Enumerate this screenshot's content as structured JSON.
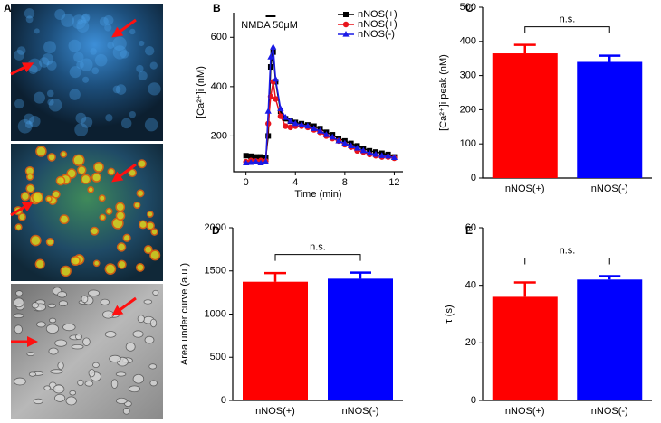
{
  "panel_a": {
    "label": "A"
  },
  "chart_data": [
    {
      "type": "line",
      "label": "B",
      "y_label": "[Ca²⁺]i (nM)",
      "x_label": "Time (min)",
      "annotation": "NMDA 50μM",
      "x": [
        0,
        0.4,
        0.8,
        1.2,
        1.6,
        1.8,
        2.0,
        2.2,
        2.4,
        2.8,
        3.2,
        3.6,
        4,
        4.5,
        5,
        5.5,
        6,
        6.5,
        7,
        7.5,
        8,
        8.5,
        9,
        9.5,
        10,
        10.5,
        11,
        11.5,
        12
      ],
      "series": [
        {
          "name": "nNOS(+)",
          "color": "#000000",
          "marker": "square",
          "values": [
            120,
            118,
            115,
            115,
            112,
            200,
            480,
            540,
            420,
            300,
            270,
            260,
            255,
            250,
            245,
            240,
            230,
            215,
            205,
            190,
            180,
            170,
            160,
            150,
            140,
            135,
            130,
            125,
            115
          ]
        },
        {
          "name": "nNOS(+)",
          "color": "#e8141c",
          "marker": "circle",
          "values": [
            95,
            100,
            98,
            100,
            98,
            250,
            360,
            420,
            350,
            280,
            240,
            235,
            240,
            240,
            235,
            225,
            215,
            200,
            190,
            180,
            165,
            155,
            140,
            135,
            125,
            120,
            115,
            115,
            110
          ]
        },
        {
          "name": "nNOS(-)",
          "color": "#1a1ae6",
          "marker": "triangle",
          "values": [
            90,
            92,
            95,
            90,
            95,
            300,
            520,
            560,
            430,
            310,
            275,
            260,
            250,
            245,
            240,
            230,
            220,
            205,
            195,
            180,
            170,
            160,
            150,
            140,
            130,
            125,
            120,
            118,
            112
          ]
        }
      ],
      "xlim": [
        -1,
        12.7
      ],
      "xticks": [
        0,
        4,
        8,
        12
      ],
      "ylim": [
        55,
        700
      ],
      "yticks": [
        200,
        400,
        600
      ],
      "legend": "upper right"
    },
    {
      "type": "bar",
      "label": "C",
      "y_label": "[Ca²⁺]i peak (nM)",
      "annotation": "n.s.",
      "categories": [
        "nNOS(+)",
        "nNOS(-)"
      ],
      "values": [
        365,
        340
      ],
      "errors": [
        25,
        18
      ],
      "colors": [
        "#ff0000",
        "#0000ff"
      ],
      "ylim": [
        0,
        500
      ],
      "yticks": [
        0,
        100,
        200,
        300,
        400,
        500
      ]
    },
    {
      "type": "bar",
      "label": "D",
      "y_label": "Area under curve (a.u.)",
      "annotation": "n.s.",
      "categories": [
        "nNOS(+)",
        "nNOS(-)"
      ],
      "values": [
        1375,
        1410
      ],
      "errors": [
        100,
        70
      ],
      "colors": [
        "#ff0000",
        "#0000ff"
      ],
      "ylim": [
        0,
        2000
      ],
      "yticks": [
        0,
        500,
        1000,
        1500,
        2000
      ]
    },
    {
      "type": "bar",
      "label": "E",
      "y_label": "τ (s)",
      "annotation": "n.s.",
      "categories": [
        "nNOS(+)",
        "nNOS(-)"
      ],
      "values": [
        36,
        42
      ],
      "errors": [
        5,
        1.2
      ],
      "colors": [
        "#ff0000",
        "#0000ff"
      ],
      "ylim": [
        0,
        60
      ],
      "yticks": [
        0,
        20,
        40,
        60
      ]
    }
  ]
}
